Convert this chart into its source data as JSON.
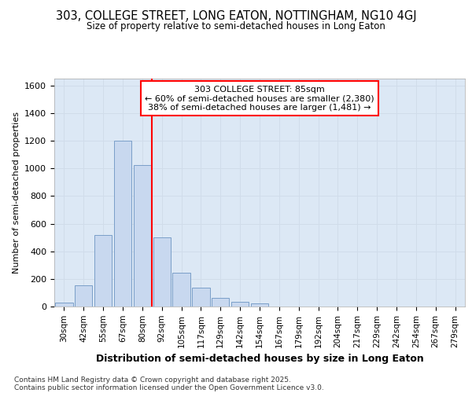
{
  "title_line1": "303, COLLEGE STREET, LONG EATON, NOTTINGHAM, NG10 4GJ",
  "title_line2": "Size of property relative to semi-detached houses in Long Eaton",
  "xlabel": "Distribution of semi-detached houses by size in Long Eaton",
  "ylabel": "Number of semi-detached properties",
  "categories": [
    "30sqm",
    "42sqm",
    "55sqm",
    "67sqm",
    "80sqm",
    "92sqm",
    "105sqm",
    "117sqm",
    "129sqm",
    "142sqm",
    "154sqm",
    "167sqm",
    "179sqm",
    "192sqm",
    "204sqm",
    "217sqm",
    "229sqm",
    "242sqm",
    "254sqm",
    "267sqm",
    "279sqm"
  ],
  "values": [
    30,
    155,
    520,
    1200,
    1025,
    500,
    245,
    135,
    65,
    35,
    20,
    0,
    0,
    0,
    0,
    0,
    0,
    0,
    0,
    0,
    0
  ],
  "bar_color": "#c8d8ef",
  "bar_edge_color": "#7a9fc8",
  "grid_color": "#d0dcea",
  "background_color": "#dce8f5",
  "vline_color": "red",
  "annotation_title": "303 COLLEGE STREET: 85sqm",
  "annotation_line1": "← 60% of semi-detached houses are smaller (2,380)",
  "annotation_line2": "38% of semi-detached houses are larger (1,481) →",
  "footer_line1": "Contains HM Land Registry data © Crown copyright and database right 2025.",
  "footer_line2": "Contains public sector information licensed under the Open Government Licence v3.0.",
  "ylim": [
    0,
    1650
  ],
  "yticks": [
    0,
    200,
    400,
    600,
    800,
    1000,
    1200,
    1400,
    1600
  ]
}
